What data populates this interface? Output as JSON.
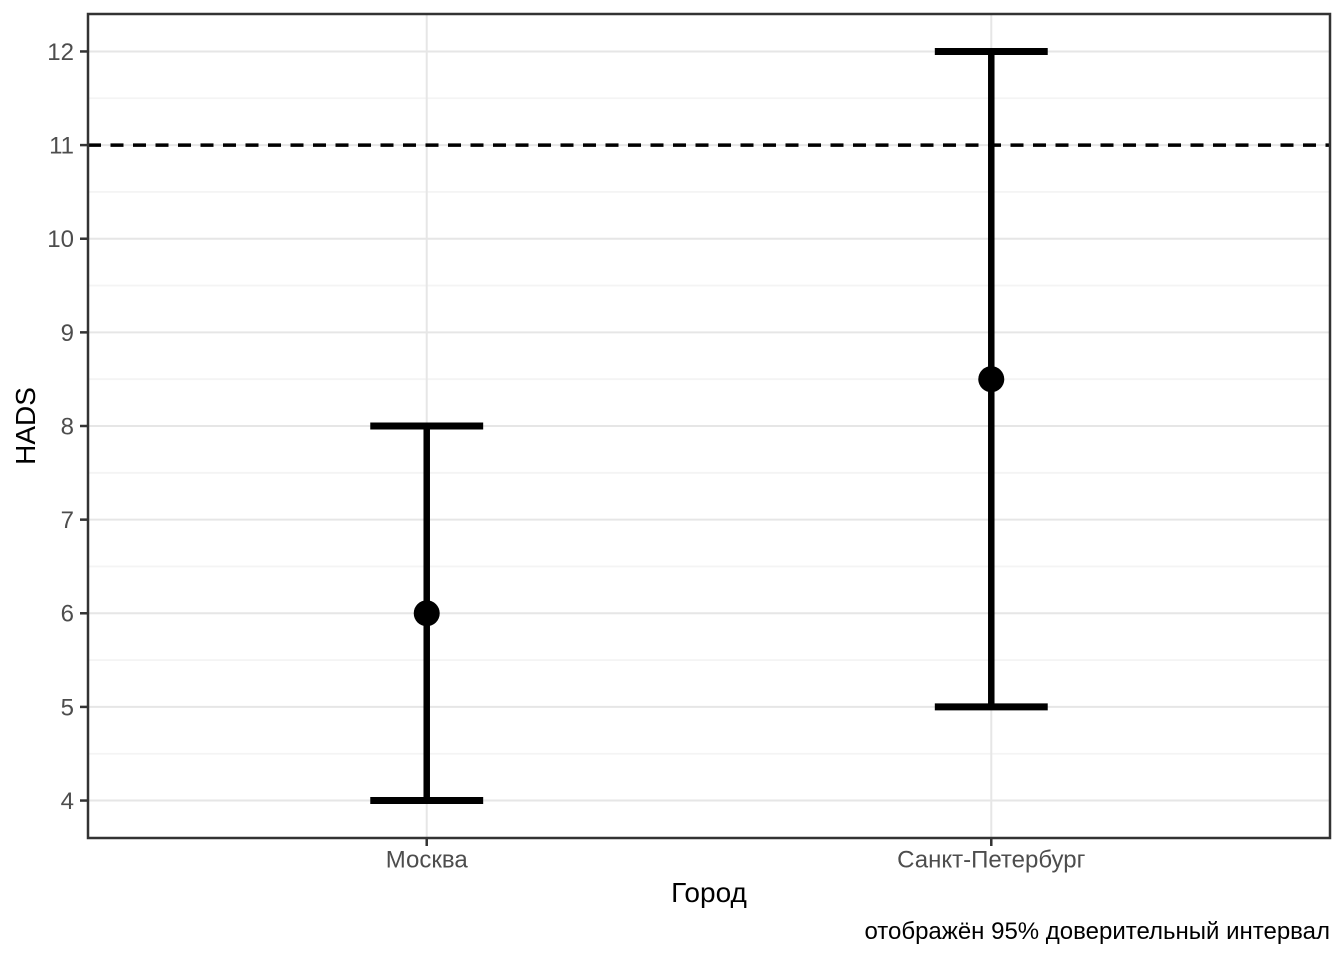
{
  "chart_data": {
    "type": "scatter",
    "subtype": "point_estimates_with_error_bars",
    "title": "",
    "xlabel": "Город",
    "ylabel": "HADS",
    "caption": "отображён 95% доверительный интервал",
    "categories": [
      "Москва",
      "Санкт-Петербург"
    ],
    "series": [
      {
        "name": "mean",
        "values": [
          6,
          8.5
        ]
      },
      {
        "name": "ci_lower_95",
        "values": [
          4,
          5
        ]
      },
      {
        "name": "ci_upper_95",
        "values": [
          8,
          12
        ]
      }
    ],
    "reference_line": {
      "y": 11,
      "style": "dashed",
      "color": "#000000"
    },
    "y_ticks": [
      4,
      5,
      6,
      7,
      8,
      9,
      10,
      11,
      12
    ],
    "y_minor_ticks": [
      4.5,
      5.5,
      6.5,
      7.5,
      8.5,
      9.5,
      10.5,
      11.5
    ],
    "ylim": [
      3.6,
      12.4
    ],
    "grid": "on",
    "legend": "none",
    "colors": {
      "data": "#000000",
      "grid_major": "#E6E6E6",
      "grid_minor": "#F4F4F4",
      "panel_border": "#333333",
      "tick_mark": "#333333",
      "tick_label": "#4D4D4D",
      "axis_title": "#000000",
      "background": "#FFFFFF"
    }
  }
}
